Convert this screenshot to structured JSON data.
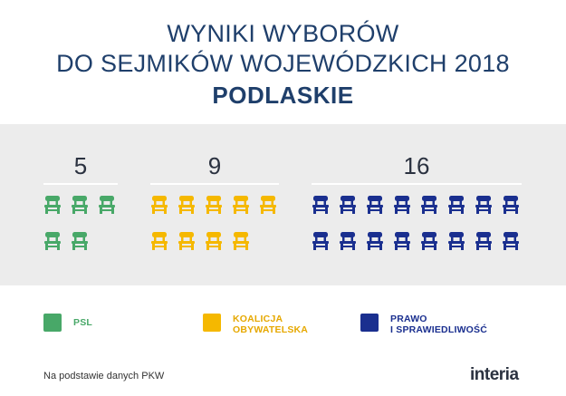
{
  "header": {
    "line1": "WYNIKI WYBORÓW",
    "line2": "DO SEJMIKÓW WOJEWÓDZKICH 2018",
    "line3": "PODLASKIE"
  },
  "chart_data": {
    "type": "pictogram",
    "title": "WYNIKI WYBORÓW DO SEJMIKÓW WOJEWÓDZKICH 2018",
    "subtitle": "PODLASKIE",
    "series": [
      {
        "name": "PSL",
        "value": 5,
        "color": "#48a868"
      },
      {
        "name": "KOALICJA OBYWATELSKA",
        "value": 9,
        "color": "#f5b800"
      },
      {
        "name": "PRAWO I SPRAWIEDLIWOŚĆ",
        "value": 16,
        "color": "#1a2f8f"
      }
    ],
    "legend_placement": "bottom"
  },
  "legend": [
    {
      "label": "PSL",
      "color": "#48a868",
      "text_color": "#48a868"
    },
    {
      "label": "KOALICJA\nOBYWATELSKA",
      "color": "#f5b800",
      "text_color": "#e6a800"
    },
    {
      "label": "PRAWO\nI SPRAWIEDLIWOŚĆ",
      "color": "#1a2f8f",
      "text_color": "#1a2f8f"
    }
  ],
  "footer": {
    "source": "Na podstawie danych PKW",
    "logo": "interia"
  }
}
